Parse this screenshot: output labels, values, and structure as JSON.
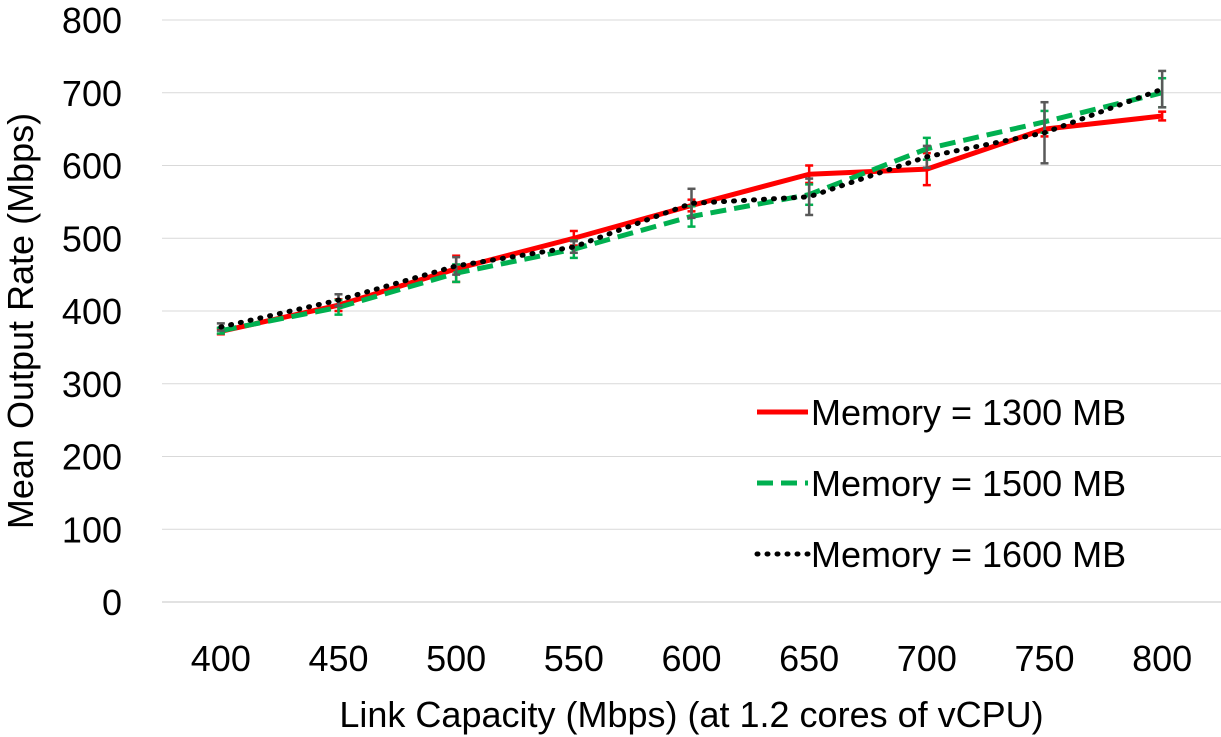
{
  "chart_data": {
    "type": "line",
    "title": "",
    "xlabel": "Link Capacity (Mbps) (at 1.2 cores of vCPU)",
    "ylabel": "Mean Output Rate (Mbps)",
    "x": [
      400,
      450,
      500,
      550,
      600,
      650,
      700,
      750,
      800
    ],
    "xlim": [
      400,
      800
    ],
    "ylim": [
      0,
      800
    ],
    "yticks": [
      0,
      100,
      200,
      300,
      400,
      500,
      600,
      700,
      800
    ],
    "grid": "horizontal",
    "legend_position": "bottom-right",
    "series": [
      {
        "name": "Memory = 1300 MB",
        "color": "#ff0000",
        "style": "solid",
        "values": [
          372,
          408,
          458,
          500,
          545,
          588,
          595,
          650,
          668
        ],
        "error": [
          4,
          8,
          18,
          10,
          8,
          12,
          22,
          10,
          6
        ]
      },
      {
        "name": "Memory = 1500 MB",
        "color": "#00b050",
        "style": "dashed",
        "values": [
          373,
          405,
          452,
          485,
          530,
          560,
          623,
          660,
          700
        ],
        "error": [
          4,
          10,
          12,
          12,
          14,
          14,
          15,
          15,
          20
        ]
      },
      {
        "name": "Memory = 1600 MB",
        "color": "#000000",
        "style": "dotted",
        "values": [
          378,
          415,
          462,
          488,
          548,
          557,
          612,
          645,
          705
        ],
        "error": [
          5,
          8,
          12,
          8,
          20,
          25,
          15,
          42,
          25
        ]
      }
    ]
  }
}
